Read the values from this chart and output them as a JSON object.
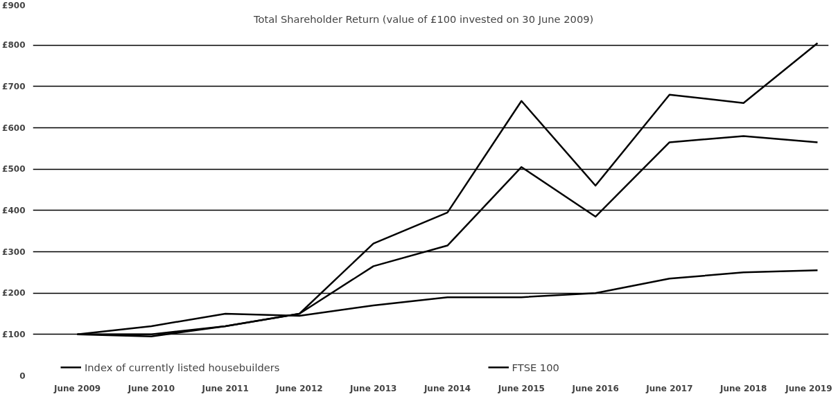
{
  "chart_data": {
    "type": "line",
    "title": "Total Shareholder Return (value of  £100 invested on 30 June 2009)",
    "categories": [
      "June 2009",
      "June 2010",
      "June 2011",
      "June 2012",
      "June 2013",
      "June 2014",
      "June 2015",
      "June 2016",
      "June 2017",
      "June 2018",
      "June 2019"
    ],
    "series": [
      {
        "name": "Index of currently listed housebuilders",
        "color": "#000000",
        "values": [
          100,
          100,
          120,
          150,
          265,
          315,
          505,
          385,
          565,
          580,
          565
        ]
      },
      {
        "name": "FTSE 100",
        "color": "#000000",
        "values": [
          100,
          120,
          150,
          145,
          170,
          190,
          190,
          200,
          235,
          250,
          255
        ]
      },
      {
        "color": "#000000",
        "values": [
          100,
          95,
          120,
          150,
          320,
          395,
          665,
          460,
          680,
          660,
          805
        ]
      }
    ],
    "ylim": [
      0,
      900
    ],
    "yticks": [
      0,
      {
        "value": 100,
        "label": "£100"
      },
      {
        "value": 200,
        "label": "£200"
      },
      {
        "value": 300,
        "label": "£300"
      },
      {
        "value": 400,
        "label": "£400"
      },
      {
        "value": 500,
        "label": "£500"
      },
      {
        "value": 600,
        "label": "£600"
      },
      {
        "value": 700,
        "label": "£700"
      },
      {
        "value": 800,
        "label": "£800"
      },
      {
        "value": 900,
        "label": "£900"
      }
    ],
    "grid": "y",
    "legend": "bottom",
    "marker": "none",
    "line_style": "solid"
  }
}
